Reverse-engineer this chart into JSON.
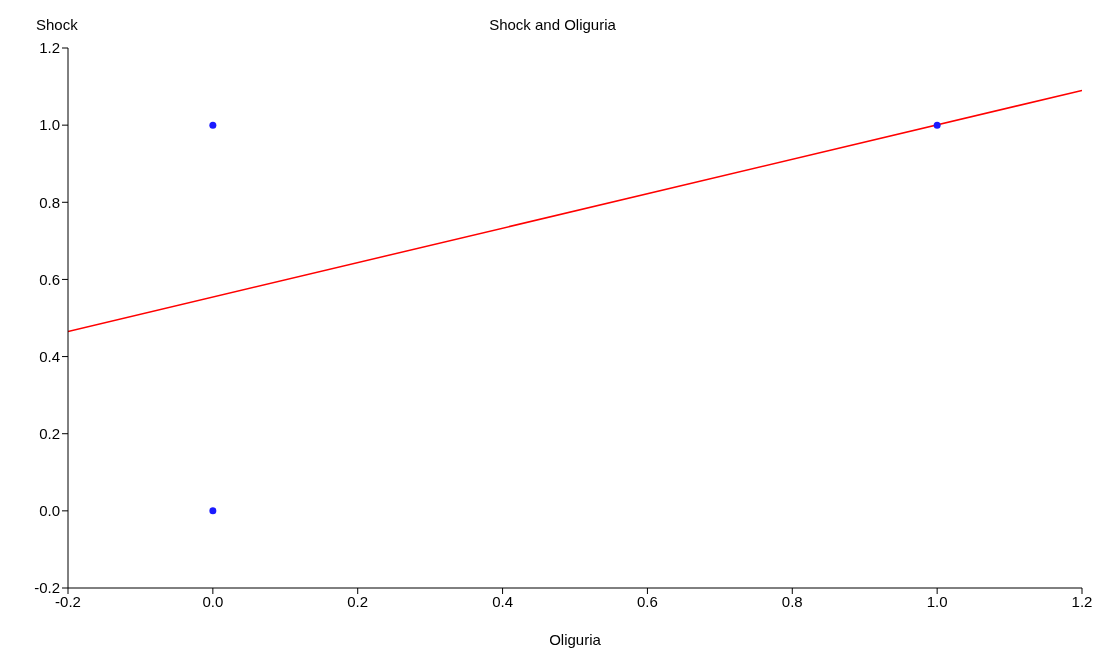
{
  "chart_data": {
    "type": "scatter",
    "title": "Shock and Oliguria",
    "xlabel": "Oliguria",
    "ylabel": "Shock",
    "xlim": [
      -0.2,
      1.2
    ],
    "xticks": [
      {
        "value": -0.2,
        "label": "-0.2"
      },
      {
        "value": 0,
        "label": "0.0"
      },
      {
        "value": 0.2,
        "label": "0.2"
      },
      {
        "value": 0.4,
        "label": "0.4"
      },
      {
        "value": 0.6,
        "label": "0.6"
      },
      {
        "value": 0.8,
        "label": "0.8"
      },
      {
        "value": 1,
        "label": "1.0"
      },
      {
        "value": 1.2,
        "label": "1.2"
      }
    ],
    "ylim": [
      -0.2,
      1.2
    ],
    "yticks": [
      {
        "value": -0.2,
        "label": "-0.2"
      },
      {
        "value": 0,
        "label": "0.0"
      },
      {
        "value": 0.2,
        "label": "0.2"
      },
      {
        "value": 0.4,
        "label": "0.4"
      },
      {
        "value": 0.6,
        "label": "0.6"
      },
      {
        "value": 0.8,
        "label": "0.8"
      },
      {
        "value": 1,
        "label": "1.0"
      },
      {
        "value": 1.2,
        "label": "1.2"
      }
    ],
    "grid": false,
    "series": [
      {
        "marker": "circle",
        "color": "#1a1aff",
        "x": [
          0,
          0,
          1
        ],
        "values": [
          1,
          0,
          1
        ]
      },
      {
        "type": "line",
        "color": "#ff0000",
        "x": [
          -0.2,
          1.2
        ],
        "values": [
          0.465,
          1.09
        ]
      }
    ]
  }
}
